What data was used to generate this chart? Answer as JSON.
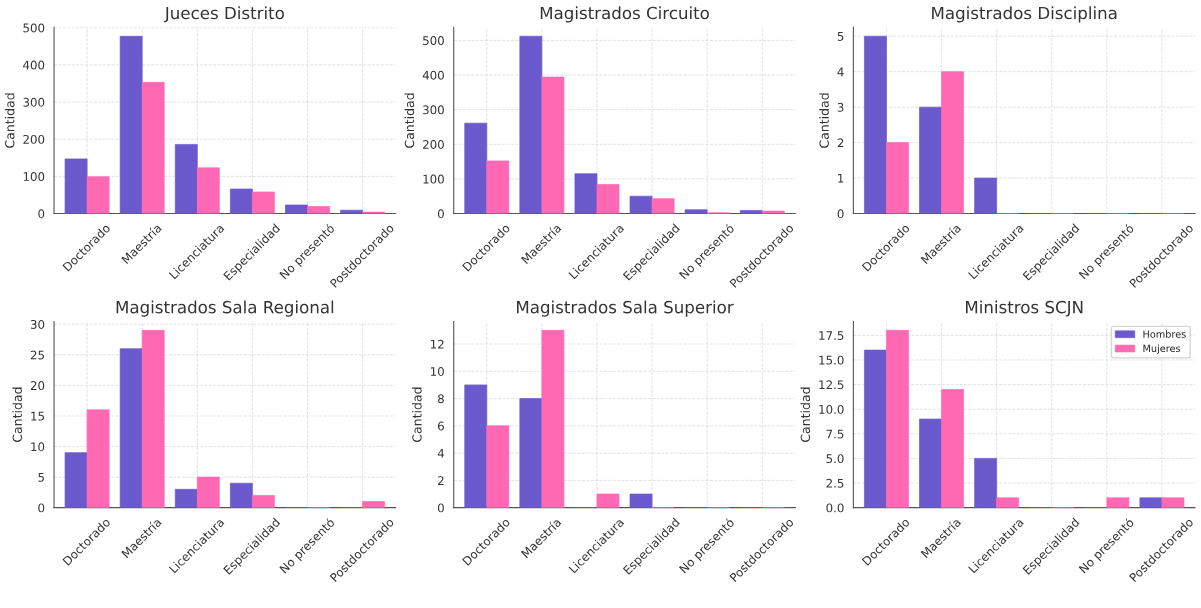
{
  "chart_data": [
    {
      "type": "bar",
      "title": "Jueces Distrito",
      "ylabel": "Cantidad",
      "categories": [
        "Doctorado",
        "Maestría",
        "Licenciatura",
        "Especialidad",
        "No presentó",
        "Postdoctorado"
      ],
      "series": [
        {
          "color": "#6a5acd",
          "values": [
            147,
            477,
            186,
            66,
            23,
            9
          ]
        },
        {
          "color": "#ff69b4",
          "values": [
            99,
            353,
            123,
            58,
            19,
            4
          ]
        }
      ],
      "ylim": [
        0,
        501
      ],
      "yticks": [
        0,
        100,
        200,
        300,
        400,
        500
      ],
      "grid": true
    },
    {
      "type": "bar",
      "title": "Magistrados Circuito",
      "ylabel": "Cantidad",
      "categories": [
        "Doctorado",
        "Maestría",
        "Licenciatura",
        "Especialidad",
        "No presentó",
        "Postdoctorado"
      ],
      "series": [
        {
          "color": "#6a5acd",
          "values": [
            261,
            512,
            115,
            50,
            11,
            9
          ]
        },
        {
          "color": "#ff69b4",
          "values": [
            152,
            394,
            84,
            43,
            2,
            7
          ]
        }
      ],
      "ylim": [
        0,
        537.6
      ],
      "yticks": [
        0,
        100,
        200,
        300,
        400,
        500
      ],
      "grid": true
    },
    {
      "type": "bar",
      "title": "Magistrados Disciplina",
      "ylabel": "Cantidad",
      "categories": [
        "Doctorado",
        "Maestría",
        "Licenciatura",
        "Especialidad",
        "No presentó",
        "Postdoctorado"
      ],
      "series": [
        {
          "color": "#6a5acd",
          "values": [
            5,
            3,
            1,
            0,
            0,
            0
          ]
        },
        {
          "color": "#ff69b4",
          "values": [
            2,
            4,
            0,
            0,
            0,
            0
          ]
        }
      ],
      "ylim": [
        0,
        5.25
      ],
      "yticks": [
        0,
        1,
        2,
        3,
        4,
        5
      ],
      "grid": true
    },
    {
      "type": "bar",
      "title": "Magistrados Sala Regional",
      "ylabel": "Cantidad",
      "categories": [
        "Doctorado",
        "Maestría",
        "Licenciatura",
        "Especialidad",
        "No presentó",
        "Postdoctorado"
      ],
      "series": [
        {
          "color": "#6a5acd",
          "values": [
            9,
            26,
            3,
            4,
            0,
            0
          ]
        },
        {
          "color": "#ff69b4",
          "values": [
            16,
            29,
            5,
            2,
            0,
            1
          ]
        }
      ],
      "ylim": [
        0,
        30.45
      ],
      "yticks": [
        0,
        5,
        10,
        15,
        20,
        25,
        30
      ],
      "grid": true
    },
    {
      "type": "bar",
      "title": "Magistrados Sala Superior",
      "ylabel": "Cantidad",
      "categories": [
        "Doctorado",
        "Maestría",
        "Licenciatura",
        "Especialidad",
        "No presentó",
        "Postdoctorado"
      ],
      "series": [
        {
          "color": "#6a5acd",
          "values": [
            9,
            8,
            0,
            1,
            0,
            0
          ]
        },
        {
          "color": "#ff69b4",
          "values": [
            6,
            13,
            1,
            0,
            0,
            0
          ]
        }
      ],
      "ylim": [
        0,
        13.65
      ],
      "yticks": [
        0,
        2,
        4,
        6,
        8,
        10,
        12
      ],
      "grid": true
    },
    {
      "type": "bar",
      "title": "Ministros SCJN",
      "ylabel": "Cantidad",
      "categories": [
        "Doctorado",
        "Maestría",
        "Licenciatura",
        "Especialidad",
        "No presentó",
        "Postdoctorado"
      ],
      "series": [
        {
          "name": "Hombres",
          "color": "#6a5acd",
          "values": [
            16,
            9,
            5,
            0,
            0,
            1
          ]
        },
        {
          "name": "Mujeres",
          "color": "#ff69b4",
          "values": [
            18,
            12,
            1,
            0,
            1,
            1
          ]
        }
      ],
      "ylim": [
        0,
        18.9
      ],
      "yticks": [
        {
          "value": 0,
          "label": "0.0"
        },
        {
          "value": 2.5,
          "label": "2.5"
        },
        {
          "value": 5,
          "label": "5.0"
        },
        {
          "value": 7.5,
          "label": "7.5"
        },
        {
          "value": 10,
          "label": "10.0"
        },
        {
          "value": 12.5,
          "label": "12.5"
        },
        {
          "value": 15,
          "label": "15.0"
        },
        {
          "value": 17.5,
          "label": "17.5"
        }
      ],
      "grid": true,
      "legend": "top right"
    }
  ]
}
